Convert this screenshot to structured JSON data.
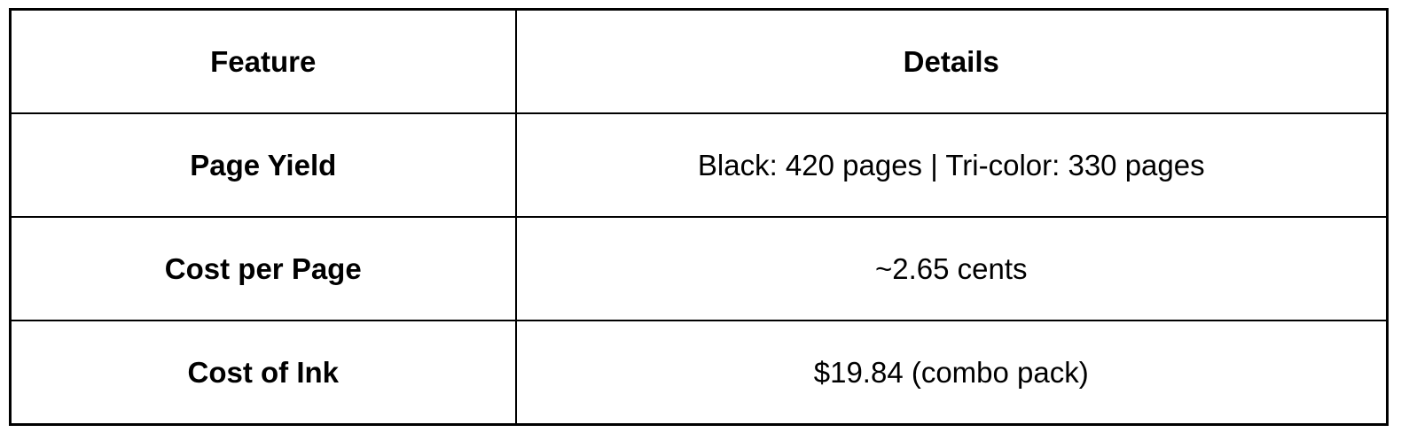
{
  "table": {
    "headers": [
      "Feature",
      "Details"
    ],
    "rows": [
      {
        "feature": "Page Yield",
        "details": "Black: 420 pages | Tri-color: 330 pages"
      },
      {
        "feature": "Cost per Page",
        "details": "~2.65 cents"
      },
      {
        "feature": "Cost of Ink",
        "details": "$19.84 (combo pack)"
      }
    ]
  }
}
